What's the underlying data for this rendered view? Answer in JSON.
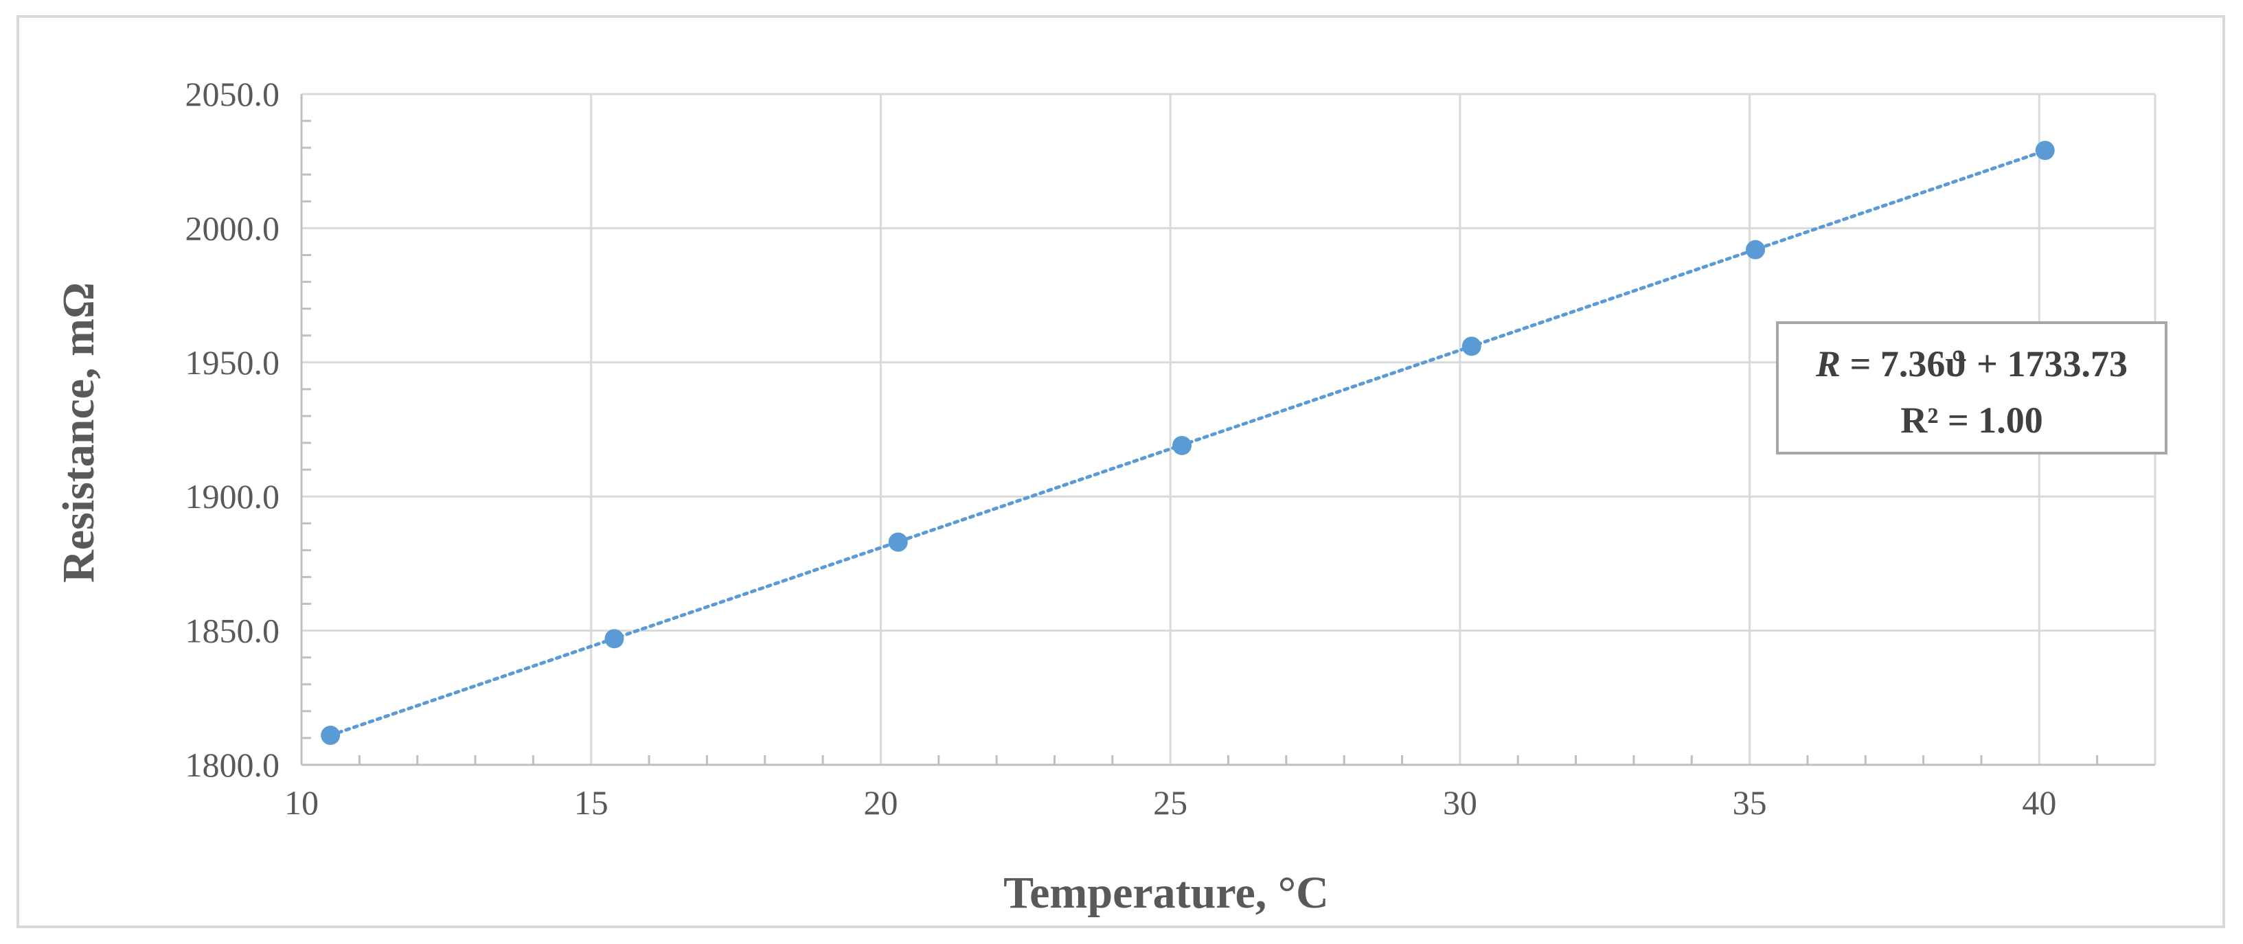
{
  "chart_data": {
    "type": "scatter",
    "xlabel": "Temperature, °C",
    "ylabel": "Resistance, mΩ",
    "xlim": [
      10,
      42
    ],
    "ylim": [
      1800,
      2050
    ],
    "x_ticks": [
      "10",
      "15",
      "20",
      "25",
      "30",
      "35",
      "40"
    ],
    "y_ticks": [
      "1800.0",
      "1850.0",
      "1900.0",
      "1950.0",
      "2000.0",
      "2050.0"
    ],
    "grid": true,
    "marker_color": "#5b9bd5",
    "trendline_color": "#5b9bd5",
    "series": [
      {
        "x": [
          10.5,
          15.4,
          20.3,
          25.2,
          30.2,
          35.1,
          40.1
        ],
        "y": [
          1811,
          1847,
          1883,
          1919,
          1956,
          1992,
          2029
        ]
      }
    ],
    "trendline": {
      "type": "linear",
      "slope": 7.36,
      "intercept": 1733.73,
      "equation_var": "R",
      "equation_rest": " = 7.36ϑ + 1733.73",
      "r_squared": "R² = 1.00"
    }
  }
}
